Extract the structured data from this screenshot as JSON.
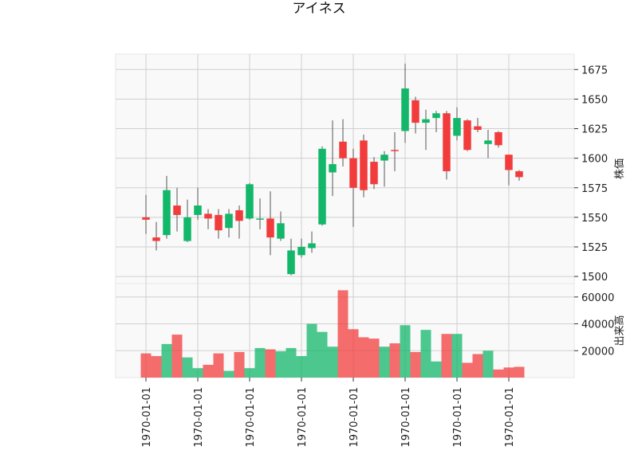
{
  "chart_data": {
    "type": "candlestick",
    "title": "アイネス",
    "up_color": "#12b76a",
    "down_color": "#f23c3c",
    "grid": true,
    "price_panel": {
      "ylabel": "株価",
      "ylim": [
        1494,
        1688
      ],
      "yticks": [
        1500,
        1525,
        1550,
        1575,
        1600,
        1625,
        1650,
        1675
      ]
    },
    "volume_panel": {
      "ylabel": "出来高",
      "ylim": [
        0,
        70000
      ],
      "yticks": [
        20000,
        40000,
        60000
      ]
    },
    "xtick_labels": [
      "1970-01-01",
      "1970-01-01",
      "1970-01-01",
      "1970-01-01",
      "1970-01-01",
      "1970-01-01",
      "1970-01-01",
      "1970-01-01"
    ],
    "xtick_positions": [
      0,
      5,
      10,
      15,
      20,
      25,
      30,
      35
    ],
    "ohlcv": [
      {
        "open": 1550,
        "high": 1569,
        "low": 1536,
        "close": 1548,
        "volume": 18000
      },
      {
        "open": 1533,
        "high": 1546,
        "low": 1522,
        "close": 1530,
        "volume": 16000
      },
      {
        "open": 1535,
        "high": 1585,
        "low": 1532,
        "close": 1573,
        "volume": 25000
      },
      {
        "open": 1560,
        "high": 1575,
        "low": 1538,
        "close": 1552,
        "volume": 32000
      },
      {
        "open": 1530,
        "high": 1565,
        "low": 1529,
        "close": 1550,
        "volume": 15000
      },
      {
        "open": 1552,
        "high": 1575,
        "low": 1548,
        "close": 1560,
        "volume": 7000
      },
      {
        "open": 1553,
        "high": 1557,
        "low": 1540,
        "close": 1549,
        "volume": 9500
      },
      {
        "open": 1552,
        "high": 1557,
        "low": 1532,
        "close": 1539,
        "volume": 18000
      },
      {
        "open": 1541,
        "high": 1557,
        "low": 1533,
        "close": 1553,
        "volume": 5000
      },
      {
        "open": 1556,
        "high": 1560,
        "low": 1532,
        "close": 1547,
        "volume": 19000
      },
      {
        "open": 1549,
        "high": 1579,
        "low": 1548,
        "close": 1578,
        "volume": 7000
      },
      {
        "open": 1548,
        "high": 1566,
        "low": 1540,
        "close": 1549,
        "volume": 22000
      },
      {
        "open": 1549,
        "high": 1572,
        "low": 1518,
        "close": 1533,
        "volume": 21000
      },
      {
        "open": 1532,
        "high": 1555,
        "low": 1530,
        "close": 1545,
        "volume": 19500
      },
      {
        "open": 1502,
        "high": 1532,
        "low": 1501,
        "close": 1522,
        "volume": 22000
      },
      {
        "open": 1518,
        "high": 1532,
        "low": 1516,
        "close": 1525,
        "volume": 16000
      },
      {
        "open": 1524,
        "high": 1538,
        "low": 1520,
        "close": 1528,
        "volume": 40000
      },
      {
        "open": 1544,
        "high": 1610,
        "low": 1543,
        "close": 1608,
        "volume": 34000
      },
      {
        "open": 1588,
        "high": 1632,
        "low": 1568,
        "close": 1595,
        "volume": 23000
      },
      {
        "open": 1614,
        "high": 1633,
        "low": 1593,
        "close": 1600,
        "volume": 65000
      },
      {
        "open": 1600,
        "high": 1608,
        "low": 1542,
        "close": 1575,
        "volume": 36000
      },
      {
        "open": 1615,
        "high": 1620,
        "low": 1567,
        "close": 1573,
        "volume": 30000
      },
      {
        "open": 1597,
        "high": 1601,
        "low": 1574,
        "close": 1578,
        "volume": 29000
      },
      {
        "open": 1598,
        "high": 1606,
        "low": 1576,
        "close": 1603,
        "volume": 23000
      },
      {
        "open": 1607,
        "high": 1622,
        "low": 1589,
        "close": 1606,
        "volume": 25500
      },
      {
        "open": 1623,
        "high": 1680,
        "low": 1613,
        "close": 1659,
        "volume": 39000
      },
      {
        "open": 1649,
        "high": 1652,
        "low": 1621,
        "close": 1630,
        "volume": 19000
      },
      {
        "open": 1630,
        "high": 1641,
        "low": 1607,
        "close": 1633,
        "volume": 35500
      },
      {
        "open": 1634,
        "high": 1640,
        "low": 1622,
        "close": 1638,
        "volume": 12000
      },
      {
        "open": 1638,
        "high": 1640,
        "low": 1582,
        "close": 1589,
        "volume": 32500
      },
      {
        "open": 1619,
        "high": 1643,
        "low": 1615,
        "close": 1634,
        "volume": 32500
      },
      {
        "open": 1632,
        "high": 1633,
        "low": 1606,
        "close": 1607,
        "volume": 11000
      },
      {
        "open": 1627,
        "high": 1634,
        "low": 1622,
        "close": 1624,
        "volume": 17500
      },
      {
        "open": 1612,
        "high": 1624,
        "low": 1600,
        "close": 1615,
        "volume": 20000
      },
      {
        "open": 1622,
        "high": 1623,
        "low": 1609,
        "close": 1611,
        "volume": 6000
      },
      {
        "open": 1603,
        "high": 1603,
        "low": 1577,
        "close": 1590,
        "volume": 7500
      },
      {
        "open": 1589,
        "high": 1590,
        "low": 1581,
        "close": 1584,
        "volume": 8000
      }
    ]
  }
}
